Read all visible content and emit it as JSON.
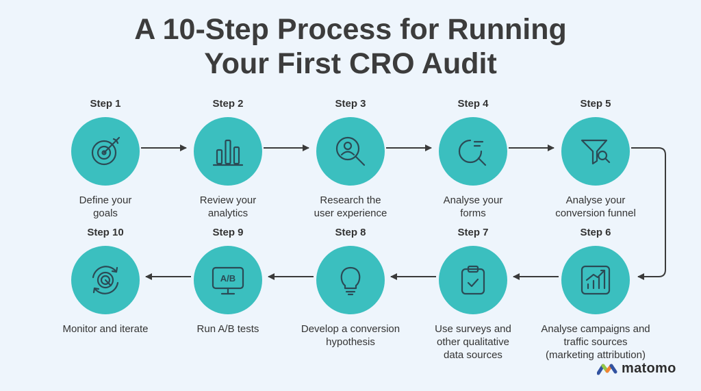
{
  "title": {
    "line1": "A 10-Step Process for Running",
    "line2": "Your First CRO Audit"
  },
  "steps": [
    {
      "label": "Step 1",
      "lines": [
        "Define your",
        "goals"
      ],
      "icon": "target-icon"
    },
    {
      "label": "Step 2",
      "lines": [
        "Review your",
        "analytics"
      ],
      "icon": "bar-chart-icon"
    },
    {
      "label": "Step 3",
      "lines": [
        "Research the",
        "user experience"
      ],
      "icon": "user-search-icon"
    },
    {
      "label": "Step 4",
      "lines": [
        "Analyse your",
        "forms"
      ],
      "icon": "form-search-icon"
    },
    {
      "label": "Step 5",
      "lines": [
        "Analyse your",
        "conversion funnel"
      ],
      "icon": "funnel-search-icon"
    },
    {
      "label": "Step 6",
      "lines": [
        "Analyse campaigns and",
        "traffic sources",
        "(marketing attribution)"
      ],
      "icon": "trend-chart-icon"
    },
    {
      "label": "Step 7",
      "lines": [
        "Use surveys and",
        "other qualitative",
        "data sources"
      ],
      "icon": "clipboard-check-icon"
    },
    {
      "label": "Step 8",
      "lines": [
        "Develop a conversion",
        "hypothesis"
      ],
      "icon": "lightbulb-icon"
    },
    {
      "label": "Step 9",
      "lines": [
        "Run A/B tests"
      ],
      "icon": "ab-monitor-icon",
      "icon_text": "A/B"
    },
    {
      "label": "Step 10",
      "lines": [
        "Monitor and iterate"
      ],
      "icon": "refresh-target-icon"
    }
  ],
  "colors": {
    "background": "#eef5fc",
    "circle": "#3bbfbf",
    "icon_stroke": "#2b4a55",
    "arrow": "#3a3a3a"
  },
  "logo": {
    "text": "matomo",
    "icon": "matomo-logo-icon"
  }
}
